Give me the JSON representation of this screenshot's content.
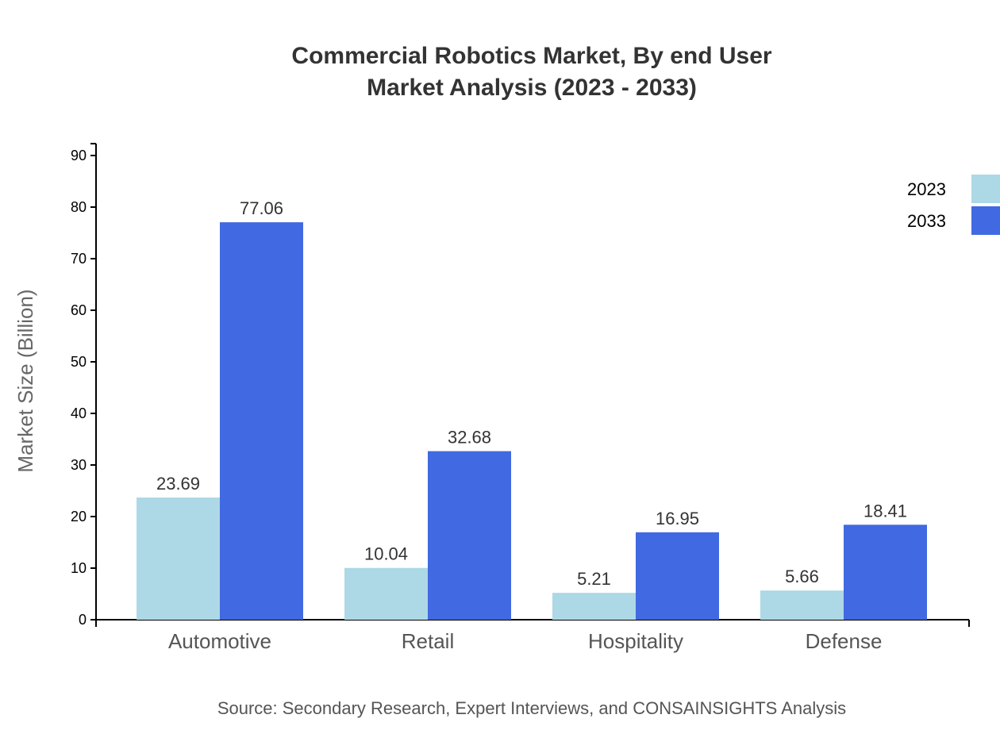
{
  "chart_data": {
    "type": "bar",
    "title": "Commercial Robotics Market, By end User",
    "subtitle": "Market Analysis (2023 - 2033)",
    "xlabel": "",
    "ylabel": "Market Size (Billion)",
    "ylim": [
      0,
      92.3
    ],
    "yticks": [
      0,
      10,
      20,
      30,
      40,
      50,
      60,
      70,
      80,
      90
    ],
    "categories": [
      "Automotive",
      "Retail",
      "Hospitality",
      "Defense"
    ],
    "series": [
      {
        "name": "2023",
        "color": "#add8e6",
        "values": [
          23.69,
          10.04,
          5.21,
          5.66
        ]
      },
      {
        "name": "2033",
        "color": "#4169e1",
        "values": [
          77.06,
          32.68,
          16.95,
          18.41
        ]
      }
    ],
    "value_labels": [
      [
        "23.69",
        "10.04",
        "5.21",
        "5.66"
      ],
      [
        "77.06",
        "32.68",
        "16.95",
        "18.41"
      ]
    ],
    "grid": false,
    "legend_position": "top-right",
    "source": "Source: Secondary Research, Expert Interviews, and CONSAINSIGHTS Analysis"
  }
}
